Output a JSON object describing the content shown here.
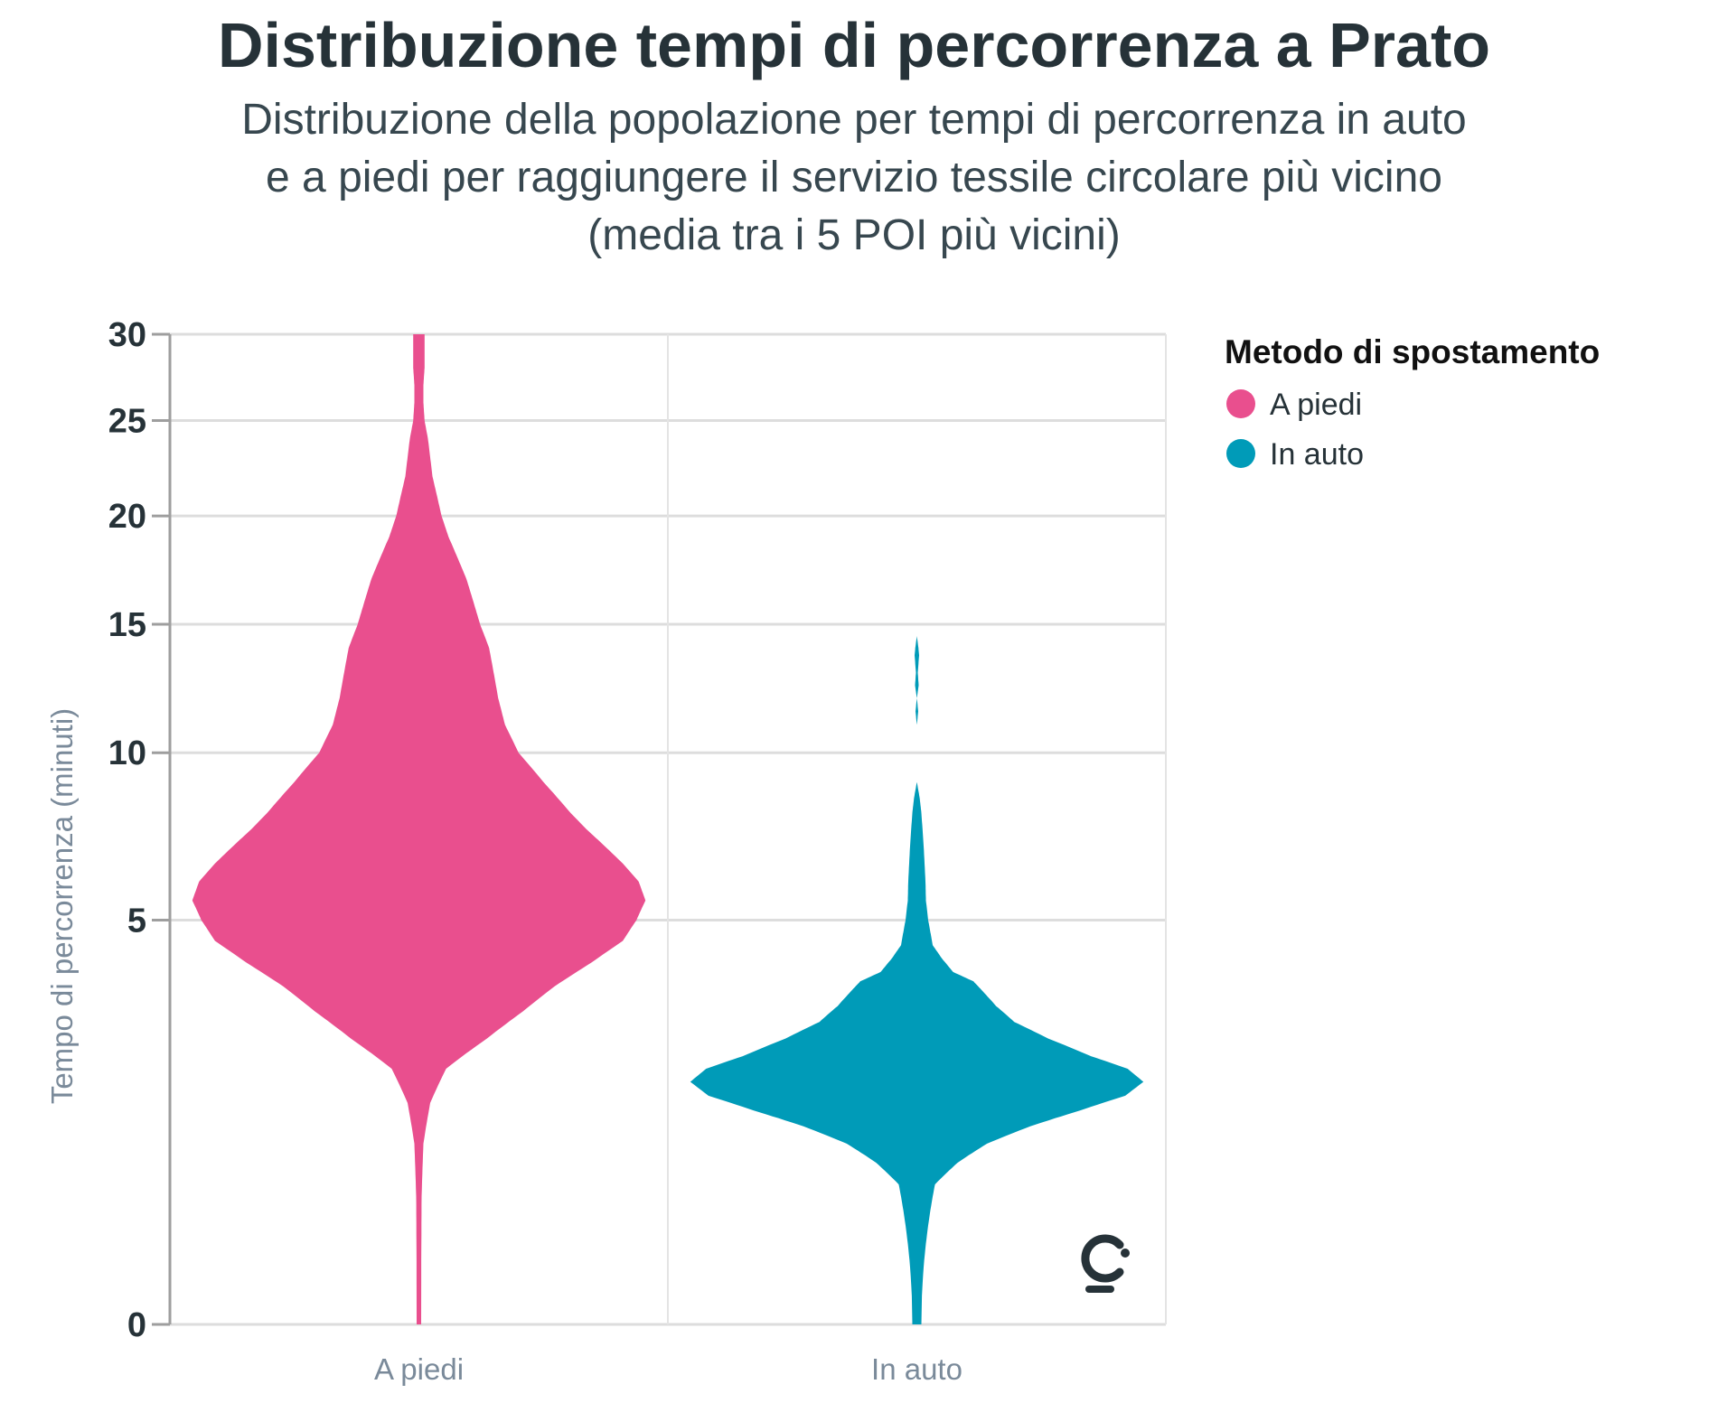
{
  "chart_data": {
    "type": "violin",
    "title": "Distribuzione tempi di percorrenza a Prato",
    "subtitle_lines": [
      "Distribuzione della popolazione per tempi di percorrenza in auto",
      "e a piedi per raggiungere il servizio tessile circolare più vicino",
      "(media tra i 5 POI più vicini)"
    ],
    "ylabel": "Tempo di percorrenza (minuti)",
    "xlabel": "",
    "y_scale": "sqrt",
    "ylim": [
      0,
      30
    ],
    "y_ticks": [
      0,
      5,
      10,
      15,
      20,
      25,
      30
    ],
    "y_tick_labels": [
      "0",
      "5",
      "10",
      "15",
      "20",
      "25",
      "30"
    ],
    "grid": true,
    "categories": [
      "A piedi",
      "In auto"
    ],
    "legend": {
      "title": "Metodo di spostamento",
      "position": "top-right",
      "items": [
        {
          "label": "A piedi",
          "color": "#E94F8E"
        },
        {
          "label": "In auto",
          "color": "#009BB8"
        }
      ]
    },
    "series": [
      {
        "category": "A piedi",
        "color": "#E94F8E",
        "profile": [
          [
            0,
            0.01
          ],
          [
            0.5,
            0.012
          ],
          [
            1.0,
            0.02
          ],
          [
            1.5,
            0.05
          ],
          [
            2.0,
            0.12
          ],
          [
            2.5,
            0.3
          ],
          [
            3.0,
            0.46
          ],
          [
            3.5,
            0.6
          ],
          [
            4.0,
            0.76
          ],
          [
            4.5,
            0.9
          ],
          [
            5.0,
            0.96
          ],
          [
            5.5,
            1.0
          ],
          [
            6.0,
            0.97
          ],
          [
            6.5,
            0.9
          ],
          [
            7.0,
            0.82
          ],
          [
            7.5,
            0.74
          ],
          [
            8.0,
            0.67
          ],
          [
            9.0,
            0.55
          ],
          [
            10.0,
            0.44
          ],
          [
            11.0,
            0.38
          ],
          [
            12.0,
            0.35
          ],
          [
            13.0,
            0.33
          ],
          [
            14.0,
            0.31
          ],
          [
            15.0,
            0.27
          ],
          [
            16.0,
            0.24
          ],
          [
            17.0,
            0.21
          ],
          [
            18.0,
            0.17
          ],
          [
            19.0,
            0.13
          ],
          [
            20.0,
            0.1
          ],
          [
            21.0,
            0.08
          ],
          [
            22.0,
            0.06
          ],
          [
            23.0,
            0.05
          ],
          [
            24.0,
            0.04
          ],
          [
            25.0,
            0.025
          ],
          [
            26.0,
            0.02
          ],
          [
            27.0,
            0.02
          ],
          [
            28.0,
            0.025
          ],
          [
            29.0,
            0.025
          ],
          [
            30.0,
            0.025
          ]
        ]
      },
      {
        "category": "In auto",
        "color": "#009BB8",
        "profile": [
          [
            0,
            0.02
          ],
          [
            0.2,
            0.04
          ],
          [
            0.4,
            0.06
          ],
          [
            0.6,
            0.08
          ],
          [
            0.8,
            0.18
          ],
          [
            1.0,
            0.31
          ],
          [
            1.2,
            0.5
          ],
          [
            1.4,
            0.72
          ],
          [
            1.6,
            0.92
          ],
          [
            1.8,
            1.0
          ],
          [
            2.0,
            0.93
          ],
          [
            2.2,
            0.77
          ],
          [
            2.5,
            0.58
          ],
          [
            2.8,
            0.43
          ],
          [
            3.1,
            0.35
          ],
          [
            3.4,
            0.29
          ],
          [
            3.6,
            0.25
          ],
          [
            3.8,
            0.16
          ],
          [
            4.1,
            0.11
          ],
          [
            4.4,
            0.07
          ],
          [
            4.7,
            0.06
          ],
          [
            5.0,
            0.05
          ],
          [
            5.5,
            0.04
          ],
          [
            6.0,
            0.038
          ],
          [
            7.0,
            0.03
          ],
          [
            8.0,
            0.02
          ],
          [
            8.5,
            0.012
          ],
          [
            9.0,
            0.0
          ],
          [
            11.0,
            0.0
          ],
          [
            11.5,
            0.006
          ],
          [
            12.0,
            0.0
          ],
          [
            12.5,
            0.008
          ],
          [
            13.0,
            0.004
          ],
          [
            13.7,
            0.01
          ],
          [
            14.0,
            0.007
          ],
          [
            14.5,
            0.0
          ]
        ]
      }
    ]
  }
}
